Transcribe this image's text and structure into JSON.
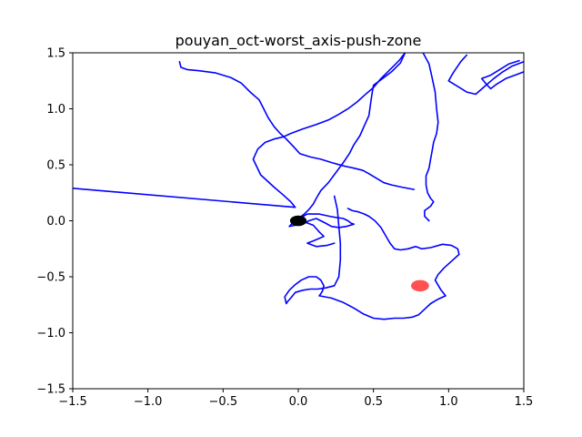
{
  "chart_data": {
    "type": "line",
    "title": "pouyan_oct-worst_axis-push-zone",
    "xlabel": "",
    "ylabel": "",
    "xlim": [
      -1.5,
      1.5
    ],
    "ylim": [
      -1.5,
      1.5
    ],
    "x_ticks": [
      -1.5,
      -1.0,
      -0.5,
      0.0,
      0.5,
      1.0,
      1.5
    ],
    "x_tick_labels": [
      "−1.5",
      "−1.0",
      "−0.5",
      "0.0",
      "0.5",
      "1.0",
      "1.5"
    ],
    "y_ticks": [
      -1.5,
      -1.0,
      -0.5,
      0.0,
      0.5,
      1.0,
      1.5
    ],
    "y_tick_labels": [
      "−1.5",
      "−1.0",
      "−0.5",
      "0.0",
      "0.5",
      "1.0",
      "1.5"
    ],
    "grid": false,
    "series": [
      {
        "color": "#0000ff",
        "points": [
          [
            -1.5,
            0.29
          ],
          [
            -0.02,
            0.12
          ],
          [
            -0.05,
            0.17
          ],
          [
            -0.1,
            0.23
          ],
          [
            -0.16,
            0.3
          ],
          [
            -0.25,
            0.41
          ],
          [
            -0.3,
            0.55
          ],
          [
            -0.27,
            0.64
          ],
          [
            -0.22,
            0.7
          ],
          [
            -0.16,
            0.73
          ],
          [
            -0.1,
            0.75
          ],
          [
            -0.05,
            0.78
          ],
          [
            0.03,
            0.82
          ],
          [
            0.12,
            0.86
          ],
          [
            0.2,
            0.9
          ],
          [
            0.27,
            0.95
          ],
          [
            0.33,
            1.0
          ],
          [
            0.39,
            1.06
          ],
          [
            0.44,
            1.12
          ],
          [
            0.5,
            1.19
          ],
          [
            0.55,
            1.27
          ],
          [
            0.61,
            1.35
          ],
          [
            0.67,
            1.43
          ],
          [
            0.71,
            1.5
          ]
        ]
      },
      {
        "color": "#0000ff",
        "points": [
          [
            0.71,
            1.5
          ],
          [
            0.68,
            1.41
          ],
          [
            0.62,
            1.33
          ],
          [
            0.56,
            1.27
          ],
          [
            0.5,
            1.21
          ],
          [
            0.49,
            1.13
          ],
          [
            0.48,
            1.04
          ],
          [
            0.47,
            0.94
          ],
          [
            0.44,
            0.85
          ],
          [
            0.41,
            0.76
          ],
          [
            0.37,
            0.68
          ],
          [
            0.34,
            0.6
          ],
          [
            0.3,
            0.52
          ],
          [
            0.25,
            0.43
          ],
          [
            0.2,
            0.34
          ],
          [
            0.15,
            0.27
          ],
          [
            0.12,
            0.2
          ],
          [
            0.1,
            0.15
          ],
          [
            0.07,
            0.1
          ],
          [
            0.04,
            0.06
          ],
          [
            0.01,
            0.03
          ],
          [
            -0.02,
            0.0
          ]
        ]
      },
      {
        "color": "#0000ff",
        "points": [
          [
            -0.02,
            0.0
          ],
          [
            0.06,
            0.06
          ],
          [
            0.14,
            0.06
          ],
          [
            0.21,
            0.04
          ],
          [
            0.25,
            0.03
          ],
          [
            0.3,
            0.02
          ],
          [
            0.33,
            0.0
          ],
          [
            0.35,
            -0.02
          ],
          [
            0.37,
            -0.03
          ],
          [
            0.32,
            -0.05
          ],
          [
            0.27,
            -0.06
          ],
          [
            0.22,
            -0.05
          ],
          [
            0.18,
            -0.02
          ],
          [
            0.15,
            0.0
          ],
          [
            0.12,
            0.02
          ],
          [
            0.07,
            0.0
          ],
          [
            0.03,
            -0.03
          ],
          [
            -0.02,
            -0.04
          ],
          [
            -0.06,
            -0.05
          ],
          [
            -0.03,
            -0.01
          ],
          [
            0.04,
            -0.01
          ],
          [
            0.1,
            -0.04
          ],
          [
            0.14,
            -0.1
          ],
          [
            0.17,
            -0.14
          ],
          [
            0.1,
            -0.18
          ],
          [
            0.06,
            -0.2
          ],
          [
            0.12,
            -0.23
          ],
          [
            0.19,
            -0.22
          ],
          [
            0.24,
            -0.2
          ]
        ]
      },
      {
        "color": "#0000ff",
        "points": [
          [
            0.24,
            0.22
          ],
          [
            0.26,
            0.1
          ],
          [
            0.27,
            -0.05
          ],
          [
            0.28,
            -0.2
          ],
          [
            0.28,
            -0.35
          ],
          [
            0.27,
            -0.5
          ],
          [
            0.24,
            -0.58
          ],
          [
            0.18,
            -0.6
          ],
          [
            0.13,
            -0.61
          ],
          [
            0.08,
            -0.61
          ],
          [
            0.03,
            -0.62
          ],
          [
            -0.02,
            -0.64
          ],
          [
            -0.05,
            -0.69
          ],
          [
            -0.07,
            -0.72
          ],
          [
            -0.08,
            -0.74
          ],
          [
            -0.09,
            -0.68
          ],
          [
            -0.06,
            -0.62
          ],
          [
            -0.02,
            -0.57
          ],
          [
            0.02,
            -0.53
          ],
          [
            0.07,
            -0.5
          ],
          [
            0.12,
            -0.5
          ],
          [
            0.15,
            -0.53
          ],
          [
            0.17,
            -0.58
          ],
          [
            0.16,
            -0.63
          ],
          [
            0.14,
            -0.67
          ]
        ]
      },
      {
        "color": "#0000ff",
        "points": [
          [
            0.14,
            -0.67
          ],
          [
            0.22,
            -0.69
          ],
          [
            0.3,
            -0.73
          ],
          [
            0.37,
            -0.78
          ],
          [
            0.43,
            -0.83
          ],
          [
            0.5,
            -0.87
          ],
          [
            0.57,
            -0.88
          ],
          [
            0.64,
            -0.87
          ],
          [
            0.7,
            -0.87
          ],
          [
            0.76,
            -0.86
          ],
          [
            0.8,
            -0.84
          ],
          [
            0.84,
            -0.79
          ],
          [
            0.88,
            -0.74
          ],
          [
            0.93,
            -0.7
          ],
          [
            0.98,
            -0.67
          ],
          [
            0.95,
            -0.62
          ],
          [
            0.91,
            -0.53
          ],
          [
            0.93,
            -0.48
          ],
          [
            0.97,
            -0.42
          ],
          [
            1.02,
            -0.36
          ],
          [
            1.07,
            -0.3
          ],
          [
            1.06,
            -0.25
          ],
          [
            1.02,
            -0.22
          ],
          [
            0.96,
            -0.21
          ],
          [
            0.88,
            -0.24
          ],
          [
            0.82,
            -0.25
          ],
          [
            0.78,
            -0.23
          ],
          [
            0.73,
            -0.25
          ],
          [
            0.68,
            -0.26
          ],
          [
            0.64,
            -0.25
          ],
          [
            0.61,
            -0.2
          ],
          [
            0.58,
            -0.13
          ],
          [
            0.55,
            -0.06
          ],
          [
            0.51,
            0.0
          ],
          [
            0.47,
            0.04
          ],
          [
            0.44,
            0.06
          ],
          [
            0.4,
            0.08
          ],
          [
            0.36,
            0.09
          ],
          [
            0.33,
            0.11
          ]
        ]
      },
      {
        "color": "#0000ff",
        "points": [
          [
            0.83,
            1.5
          ],
          [
            0.87,
            1.4
          ],
          [
            0.89,
            1.28
          ],
          [
            0.91,
            1.15
          ],
          [
            0.92,
            1.0
          ],
          [
            0.93,
            0.88
          ],
          [
            0.92,
            0.78
          ],
          [
            0.9,
            0.7
          ],
          [
            0.89,
            0.62
          ],
          [
            0.88,
            0.55
          ],
          [
            0.87,
            0.47
          ],
          [
            0.85,
            0.4
          ],
          [
            0.85,
            0.32
          ],
          [
            0.86,
            0.25
          ],
          [
            0.88,
            0.2
          ],
          [
            0.9,
            0.17
          ],
          [
            0.88,
            0.13
          ],
          [
            0.84,
            0.09
          ],
          [
            0.84,
            0.04
          ],
          [
            0.87,
            0.0
          ]
        ]
      },
      {
        "color": "#0000ff",
        "points": [
          [
            1.12,
            1.48
          ],
          [
            1.08,
            1.42
          ],
          [
            1.03,
            1.32
          ],
          [
            1.0,
            1.25
          ],
          [
            1.06,
            1.2
          ],
          [
            1.12,
            1.15
          ],
          [
            1.18,
            1.13
          ],
          [
            1.24,
            1.2
          ],
          [
            1.3,
            1.27
          ],
          [
            1.36,
            1.33
          ],
          [
            1.42,
            1.38
          ],
          [
            1.5,
            1.42
          ]
        ]
      },
      {
        "color": "#0000ff",
        "points": [
          [
            1.5,
            1.33
          ],
          [
            1.44,
            1.3
          ],
          [
            1.38,
            1.27
          ],
          [
            1.32,
            1.22
          ],
          [
            1.28,
            1.18
          ],
          [
            1.25,
            1.22
          ],
          [
            1.22,
            1.27
          ],
          [
            1.28,
            1.3
          ],
          [
            1.34,
            1.35
          ],
          [
            1.4,
            1.4
          ],
          [
            1.47,
            1.43
          ]
        ]
      },
      {
        "color": "#0000ff",
        "points": [
          [
            -0.79,
            1.42
          ],
          [
            -0.78,
            1.37
          ],
          [
            -0.74,
            1.35
          ],
          [
            -0.66,
            1.34
          ],
          [
            -0.55,
            1.32
          ],
          [
            -0.45,
            1.28
          ],
          [
            -0.38,
            1.23
          ],
          [
            -0.32,
            1.15
          ],
          [
            -0.26,
            1.08
          ],
          [
            -0.23,
            1.0
          ],
          [
            -0.2,
            0.92
          ],
          [
            -0.16,
            0.84
          ],
          [
            -0.12,
            0.78
          ],
          [
            -0.08,
            0.73
          ],
          [
            -0.03,
            0.66
          ],
          [
            0.01,
            0.6
          ],
          [
            0.08,
            0.57
          ],
          [
            0.15,
            0.55
          ],
          [
            0.22,
            0.52
          ],
          [
            0.3,
            0.49
          ],
          [
            0.37,
            0.47
          ],
          [
            0.43,
            0.45
          ],
          [
            0.47,
            0.42
          ],
          [
            0.52,
            0.38
          ],
          [
            0.57,
            0.34
          ],
          [
            0.62,
            0.32
          ],
          [
            0.69,
            0.3
          ],
          [
            0.77,
            0.28
          ]
        ]
      }
    ],
    "markers": [
      {
        "label": "",
        "x": 0.0,
        "y": 0.0,
        "color": "#000000",
        "radius_data": 0.055
      },
      {
        "label": "",
        "x": 0.81,
        "y": -0.58,
        "color": "#ff3333",
        "radius_data": 0.06,
        "alpha": 0.85
      }
    ]
  }
}
